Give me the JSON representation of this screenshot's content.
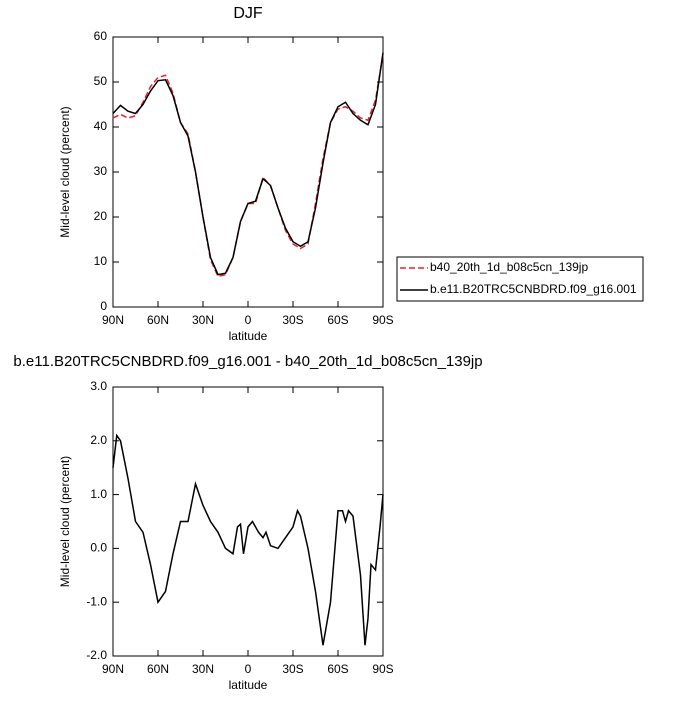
{
  "chart_data": [
    {
      "type": "line",
      "title": "DJF",
      "xlabel": "latitude",
      "ylabel": "Mid-level cloud (percent)",
      "x": [
        90,
        85,
        80,
        75,
        70,
        65,
        60,
        55,
        50,
        45,
        40,
        35,
        30,
        25,
        20,
        15,
        10,
        5,
        0,
        -5,
        -10,
        -15,
        -20,
        -25,
        -30,
        -35,
        -40,
        -45,
        -50,
        -55,
        -60,
        -65,
        -70,
        -75,
        -80,
        -85,
        -90
      ],
      "series": [
        {
          "name": "b40_20th_1d_b08c5cn_139jp",
          "color": "#e8202a",
          "dashed": true,
          "values": [
            42,
            42.8,
            42,
            42.5,
            45.5,
            49,
            51,
            51.5,
            47.5,
            41,
            38.5,
            30,
            20,
            10.5,
            6.8,
            7.2,
            11,
            19,
            23,
            23,
            28.8,
            27,
            22,
            17,
            14,
            13,
            14,
            23,
            33,
            41,
            44,
            44.5,
            43.5,
            42,
            41.5,
            46,
            56
          ]
        },
        {
          "name": "b.e11.B20TRC5CNBDRD.f09_g16.001",
          "color": "#000000",
          "dashed": false,
          "values": [
            43,
            44.8,
            43.5,
            43,
            45,
            48,
            50.3,
            50.5,
            47,
            41,
            38,
            30,
            20,
            11,
            7.2,
            7.5,
            11,
            19,
            23,
            23.5,
            28.5,
            27,
            22,
            17.5,
            14.5,
            13.5,
            14.5,
            22,
            32,
            41,
            44.5,
            45.5,
            43,
            41.5,
            40.5,
            45,
            56.5
          ]
        }
      ],
      "xlim": [
        90,
        -90
      ],
      "xticks": [
        {
          "value": 90,
          "label": "90N"
        },
        {
          "value": 60,
          "label": "60N"
        },
        {
          "value": 30,
          "label": "30N"
        },
        0,
        {
          "value": -30,
          "label": "30S"
        },
        {
          "value": -60,
          "label": "60S"
        },
        {
          "value": -90,
          "label": "90S"
        }
      ],
      "ylim": [
        0,
        60
      ],
      "yticks": [
        0,
        10,
        20,
        30,
        40,
        50,
        60
      ],
      "legend": "outside-right"
    },
    {
      "type": "line",
      "title": "b.e11.B20TRC5CNBDRD.f09_g16.001 - b40_20th_1d_b08c5cn_139jp",
      "xlabel": "latitude",
      "ylabel": "Mid-level cloud (percent)",
      "x": [
        90,
        87.5,
        85,
        80,
        75,
        70,
        65,
        60,
        55,
        50,
        45,
        40,
        35,
        30,
        25,
        20,
        15,
        10,
        7,
        5,
        3,
        0,
        -3,
        -7,
        -10,
        -12,
        -15,
        -20,
        -25,
        -30,
        -33,
        -35,
        -40,
        -45,
        -50,
        -55,
        -60,
        -63,
        -65,
        -67,
        -70,
        -75,
        -78,
        -80,
        -82,
        -85,
        -88,
        -90
      ],
      "series": [
        {
          "color": "#000000",
          "dashed": false,
          "values": [
            1.5,
            2.1,
            2.0,
            1.3,
            0.5,
            0.3,
            -0.3,
            -1.0,
            -0.8,
            -0.1,
            0.5,
            0.5,
            1.2,
            0.8,
            0.5,
            0.3,
            0.0,
            -0.1,
            0.4,
            0.45,
            -0.1,
            0.4,
            0.5,
            0.3,
            0.2,
            0.3,
            0.05,
            0.0,
            0.2,
            0.4,
            0.7,
            0.6,
            0.0,
            -0.8,
            -1.8,
            -1.0,
            0.7,
            0.7,
            0.5,
            0.7,
            0.6,
            -0.5,
            -1.8,
            -1.3,
            -0.3,
            -0.4,
            0.4,
            1.0
          ]
        }
      ],
      "xlim": [
        90,
        -90
      ],
      "xticks": [
        {
          "value": 90,
          "label": "90N"
        },
        {
          "value": 60,
          "label": "60N"
        },
        {
          "value": 30,
          "label": "30N"
        },
        0,
        {
          "value": -30,
          "label": "30S"
        },
        {
          "value": -60,
          "label": "60S"
        },
        {
          "value": -90,
          "label": "90S"
        }
      ],
      "ylim": [
        -2,
        3
      ],
      "yticks": [
        {
          "value": -2,
          "label": "-2.0"
        },
        {
          "value": -1,
          "label": "-1.0"
        },
        {
          "value": 0,
          "label": "0.0"
        },
        {
          "value": 1,
          "label": "1.0"
        },
        {
          "value": 2,
          "label": "2.0"
        },
        {
          "value": 3,
          "label": "3.0"
        }
      ]
    }
  ]
}
